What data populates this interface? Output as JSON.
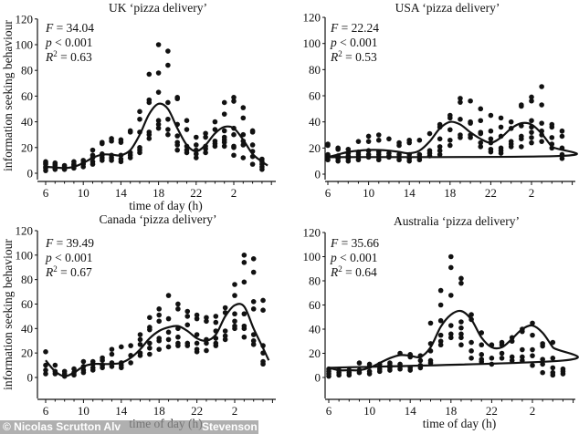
{
  "chart_data": [
    {
      "type": "scatter",
      "title": "UK ‘pizza delivery’",
      "stats": {
        "F": "34.04",
        "p": "0.001",
        "R2": "0.63"
      },
      "xlabel": "time of day (h)",
      "ylabel": "information seeking behaviour",
      "xticks": [
        "6",
        "10",
        "14",
        "18",
        "22",
        "2"
      ],
      "yticks": [
        0,
        20,
        40,
        60,
        80,
        100,
        120
      ],
      "ylim": [
        0,
        120
      ],
      "points_by_hour": {
        "6": [
          2,
          4,
          5,
          7,
          8,
          9
        ],
        "7": [
          3,
          4,
          6,
          7,
          8
        ],
        "8": [
          3,
          4,
          5,
          6
        ],
        "9": [
          4,
          6,
          7,
          9
        ],
        "10": [
          5,
          7,
          8,
          10
        ],
        "11": [
          7,
          9,
          12,
          14,
          18
        ],
        "12": [
          10,
          12,
          14,
          15,
          23,
          24
        ],
        "13": [
          10,
          12,
          14,
          25,
          27
        ],
        "14": [
          9,
          11,
          14,
          24,
          26
        ],
        "15": [
          12,
          14,
          16,
          32,
          33
        ],
        "16": [
          16,
          18,
          20,
          32,
          42,
          48
        ],
        "17": [
          27,
          30,
          32,
          55,
          57,
          77
        ],
        "18": [
          35,
          38,
          41,
          63,
          78,
          100
        ],
        "19": [
          30,
          34,
          42,
          55,
          84,
          95
        ],
        "20": [
          18,
          22,
          24,
          29,
          38,
          58,
          59
        ],
        "21": [
          16,
          18,
          21,
          34,
          41
        ],
        "22": [
          12,
          15,
          18,
          22,
          28
        ],
        "23": [
          16,
          19,
          21,
          28,
          31
        ],
        "0": [
          21,
          23,
          25,
          34,
          40
        ],
        "1": [
          21,
          24,
          26,
          28,
          33,
          46,
          55
        ],
        "2": [
          14,
          20,
          21,
          30,
          35,
          56,
          59
        ],
        "3": [
          12,
          22,
          25,
          30,
          43,
          51
        ],
        "4": [
          7,
          13,
          17,
          22,
          32,
          33
        ],
        "5": [
          3,
          5,
          7,
          9,
          11
        ]
      },
      "fit_curve": {
        "hours": [
          6,
          7,
          8,
          9,
          10,
          11,
          12,
          13,
          14,
          15,
          16,
          17,
          18,
          19,
          20,
          21,
          22,
          23,
          0,
          1,
          2,
          3,
          4,
          5,
          5.6
        ],
        "values": [
          5,
          4.5,
          4,
          5,
          8,
          12,
          14.5,
          14.5,
          14,
          18,
          30,
          46,
          54,
          50,
          35,
          22,
          17,
          22,
          31,
          36,
          35,
          26,
          15,
          9,
          6
        ]
      }
    },
    {
      "type": "scatter",
      "title": "USA ‘pizza delivery’",
      "stats": {
        "F": "22.24",
        "p": "0.001",
        "R2": "0.53"
      },
      "xticks": [
        "6",
        "10",
        "14",
        "18",
        "22",
        "2"
      ],
      "yticks": [
        0,
        20,
        40,
        60,
        80,
        100,
        120
      ],
      "ylim": [
        0,
        120
      ],
      "points_by_hour": {
        "6": [
          11,
          13,
          14,
          15,
          22,
          23
        ],
        "7": [
          10,
          12,
          13,
          14,
          19,
          20
        ],
        "8": [
          10,
          12,
          14,
          16,
          19
        ],
        "9": [
          11,
          13,
          15,
          17,
          25
        ],
        "10": [
          13,
          15,
          18,
          25,
          29
        ],
        "11": [
          11,
          13,
          15,
          17,
          26,
          30
        ],
        "12": [
          13,
          14,
          16,
          27
        ],
        "13": [
          11,
          13,
          15,
          22,
          24
        ],
        "14": [
          10,
          12,
          15,
          24,
          26
        ],
        "15": [
          11,
          13,
          15,
          26
        ],
        "16": [
          14,
          16,
          18,
          31
        ],
        "17": [
          15,
          18,
          21,
          27,
          36,
          38
        ],
        "18": [
          22,
          26,
          34,
          43,
          45
        ],
        "19": [
          28,
          30,
          42,
          55,
          58
        ],
        "20": [
          28,
          30,
          39,
          40,
          56
        ],
        "21": [
          21,
          24,
          31,
          32,
          41,
          50
        ],
        "22": [
          17,
          19,
          24,
          27,
          33,
          45
        ],
        "23": [
          16,
          18,
          20,
          29,
          36,
          43
        ],
        "0": [
          21,
          23,
          25,
          35,
          40
        ],
        "1": [
          21,
          27,
          29,
          37,
          52,
          53
        ],
        "2": [
          24,
          28,
          32,
          36,
          41,
          56,
          59
        ],
        "3": [
          25,
          30,
          33,
          39,
          53,
          67
        ],
        "4": [
          20,
          23,
          28,
          36,
          38
        ],
        "5": [
          12,
          15,
          20,
          29,
          33
        ]
      },
      "fit_curve": {
        "hours": [
          6,
          7,
          8,
          9,
          10,
          11,
          12,
          13,
          14,
          15,
          16,
          17,
          18,
          19,
          20,
          21,
          22,
          23,
          0,
          1,
          2,
          3,
          4,
          5,
          6
        ],
        "values": [
          13,
          15,
          17,
          18,
          18.5,
          18.5,
          18,
          17,
          16,
          18,
          25,
          35,
          40,
          38,
          32,
          27,
          24,
          28,
          35,
          39,
          38,
          31,
          21,
          14,
          13
        ]
      }
    },
    {
      "type": "scatter",
      "title": "Canada ‘pizza delivery’",
      "stats": {
        "F": "39.49",
        "p": "0.001",
        "R2": "0.67"
      },
      "xlabel": "time of day (h)",
      "ylabel": "information seeking behaviour",
      "xticks": [
        "6",
        "10",
        "14",
        "18",
        "22",
        "2"
      ],
      "yticks": [
        0,
        20,
        40,
        60,
        80,
        100,
        120
      ],
      "ylim": [
        0,
        120
      ],
      "points_by_hour": {
        "6": [
          3,
          6,
          10,
          21
        ],
        "7": [
          3,
          5,
          10
        ],
        "8": [
          1,
          3,
          5
        ],
        "9": [
          2,
          4,
          7
        ],
        "10": [
          4,
          6,
          9,
          13
        ],
        "11": [
          6,
          8,
          11,
          13
        ],
        "12": [
          8,
          10,
          14,
          16
        ],
        "13": [
          9,
          12,
          19,
          23
        ],
        "14": [
          8,
          10,
          12,
          25
        ],
        "15": [
          12,
          18,
          26
        ],
        "16": [
          18,
          20,
          27,
          31,
          35
        ],
        "17": [
          19,
          24,
          28,
          39,
          41,
          49
        ],
        "18": [
          23,
          30,
          32,
          46,
          51,
          56
        ],
        "19": [
          25,
          31,
          37,
          48,
          67
        ],
        "20": [
          26,
          28,
          33,
          40,
          56,
          60
        ],
        "21": [
          26,
          28,
          43,
          50,
          54
        ],
        "22": [
          21,
          23,
          28,
          35,
          48,
          51
        ],
        "23": [
          22,
          28,
          31,
          46,
          49
        ],
        "0": [
          26,
          28,
          32,
          38,
          45,
          50
        ],
        "1": [
          31,
          34,
          38,
          53,
          57
        ],
        "2": [
          40,
          42,
          46,
          52,
          67,
          76
        ],
        "3": [
          33,
          40,
          42,
          52,
          78,
          94,
          100
        ],
        "4": [
          27,
          30,
          35,
          56,
          62,
          86,
          97
        ],
        "5": [
          11,
          13,
          20,
          26,
          55,
          63
        ]
      },
      "fit_curve": {
        "hours": [
          6,
          7,
          8,
          9,
          10,
          11,
          12,
          13,
          14,
          15,
          16,
          17,
          18,
          19,
          20,
          21,
          22,
          23,
          0,
          1,
          2,
          3,
          4,
          5,
          5.6
        ],
        "values": [
          14,
          5,
          1,
          4,
          9,
          11,
          11,
          11,
          12,
          16,
          23,
          32,
          38,
          41,
          42,
          38,
          32,
          30,
          35,
          50,
          59,
          58,
          40,
          24,
          14
        ]
      }
    },
    {
      "type": "scatter",
      "title": "Australia ‘pizza delivery’",
      "stats": {
        "F": "35.66",
        "p": "0.001",
        "R2": "0.64"
      },
      "xlabel": "time of day (h)",
      "xticks": [
        "6",
        "10",
        "14",
        "18",
        "22",
        "2"
      ],
      "yticks": [
        0,
        20,
        40,
        60,
        80,
        100,
        120
      ],
      "ylim": [
        0,
        120
      ],
      "points_by_hour": {
        "6": [
          1,
          3,
          5,
          7
        ],
        "7": [
          2,
          4,
          6
        ],
        "8": [
          2,
          4,
          6
        ],
        "9": [
          4,
          6,
          12
        ],
        "10": [
          3,
          5,
          9,
          11
        ],
        "11": [
          5,
          7,
          9,
          11
        ],
        "12": [
          6,
          8,
          10,
          12
        ],
        "13": [
          7,
          9,
          11,
          20
        ],
        "14": [
          6,
          8,
          17,
          19
        ],
        "15": [
          8,
          10,
          14,
          18
        ],
        "16": [
          12,
          14,
          22,
          28,
          45
        ],
        "17": [
          27,
          30,
          35,
          47,
          60,
          72
        ],
        "18": [
          33,
          36,
          43,
          68,
          91,
          100
        ],
        "19": [
          27,
          33,
          36,
          41,
          46,
          78,
          82
        ],
        "20": [
          16,
          22,
          29,
          48,
          52
        ],
        "21": [
          13,
          15,
          19,
          27,
          37
        ],
        "22": [
          11,
          16,
          27
        ],
        "23": [
          16,
          20,
          27,
          29
        ],
        "0": [
          14,
          17,
          30,
          33
        ],
        "1": [
          14,
          17,
          23,
          38,
          40
        ],
        "2": [
          10,
          18,
          23,
          35,
          45
        ],
        "3": [
          4,
          11,
          15,
          26,
          28
        ],
        "4": [
          2,
          4,
          8,
          16,
          29
        ],
        "5": [
          3,
          5,
          7
        ]
      },
      "fit_curve": {
        "hours": [
          6,
          7,
          8,
          9,
          10,
          11,
          12,
          13,
          14,
          15,
          16,
          17,
          18,
          19,
          20,
          21,
          22,
          23,
          0,
          1,
          2,
          3,
          4,
          5,
          6
        ],
        "values": [
          8,
          6,
          6,
          6,
          8,
          12,
          16,
          18.5,
          18,
          17,
          25,
          42,
          52,
          55,
          48,
          33,
          25,
          25,
          32,
          40,
          43,
          37,
          25,
          14,
          8
        ]
      }
    }
  ],
  "watermark": {
    "left": "© Nicolas Scrutton Alv",
    "right": "Stevenson"
  },
  "colors": {
    "points": "#111111",
    "curve": "#111111",
    "watermark_bg": "#969696"
  }
}
